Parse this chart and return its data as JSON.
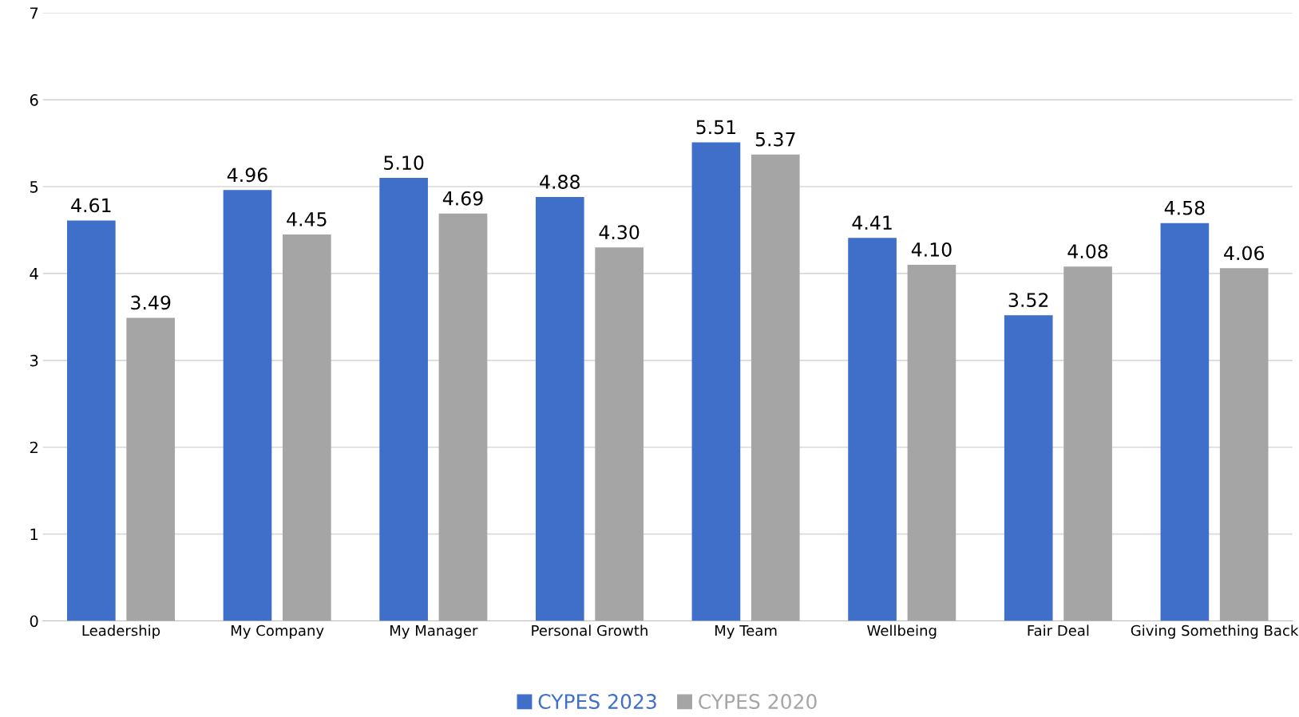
{
  "chart_data": {
    "type": "bar",
    "categories": [
      "Leadership",
      "My Company",
      "My Manager",
      "Personal Growth",
      "My Team",
      "Wellbeing",
      "Fair Deal",
      "Giving Something Back"
    ],
    "series": [
      {
        "name": "CYPES 2023",
        "color": "#3f6fc9",
        "values": [
          4.61,
          4.96,
          5.1,
          4.88,
          5.51,
          4.41,
          3.52,
          4.58
        ],
        "value_labels": [
          "4.61",
          "4.96",
          "5.10",
          "4.88",
          "5.51",
          "4.41",
          "3.52",
          "4.58"
        ]
      },
      {
        "name": "CYPES 2020",
        "color": "#a5a5a5",
        "values": [
          3.49,
          4.45,
          4.69,
          4.3,
          5.37,
          4.1,
          4.08,
          4.06
        ],
        "value_labels": [
          "3.49",
          "4.45",
          "4.69",
          "4.30",
          "5.37",
          "4.10",
          "4.08",
          "4.06"
        ]
      }
    ],
    "ylim": [
      0,
      7
    ],
    "yticks": [
      0,
      1,
      2,
      3,
      4,
      5,
      6,
      7
    ],
    "grid": "y",
    "legend": "bottom",
    "data_labels": false
  }
}
